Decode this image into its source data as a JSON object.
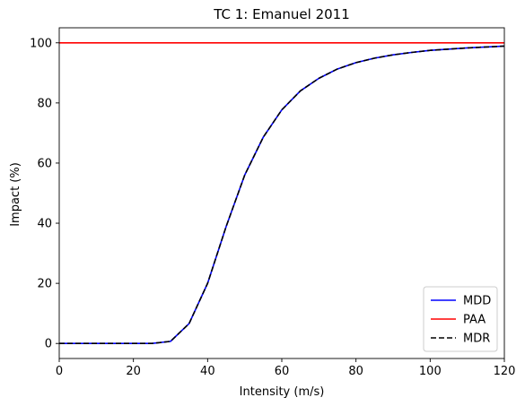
{
  "chart_data": {
    "type": "line",
    "title": "TC 1: Emanuel 2011",
    "xlabel": "Intensity (m/s)",
    "ylabel": "Impact (%)",
    "xlim": [
      0,
      120
    ],
    "ylim": [
      -5,
      105
    ],
    "xticks": [
      0,
      20,
      40,
      60,
      80,
      100,
      120
    ],
    "yticks": [
      0,
      20,
      40,
      60,
      80,
      100
    ],
    "grid": false,
    "legend_position": "bottom-right",
    "x": [
      0,
      5,
      10,
      15,
      20,
      25,
      30,
      35,
      40,
      45,
      50,
      55,
      60,
      65,
      70,
      75,
      80,
      85,
      90,
      95,
      100,
      105,
      110,
      115,
      120
    ],
    "series": [
      {
        "name": "MDD",
        "color": "#0000ff",
        "style": "solid",
        "values": [
          0,
          0,
          0,
          0,
          0,
          0,
          0.7,
          6.6,
          20.0,
          38.9,
          56.0,
          68.6,
          77.7,
          84.0,
          88.2,
          91.3,
          93.4,
          94.9,
          96.0,
          96.8,
          97.5,
          97.9,
          98.3,
          98.6,
          98.9
        ]
      },
      {
        "name": "PAA",
        "color": "#ff0000",
        "style": "solid",
        "values": [
          100,
          100,
          100,
          100,
          100,
          100,
          100,
          100,
          100,
          100,
          100,
          100,
          100,
          100,
          100,
          100,
          100,
          100,
          100,
          100,
          100,
          100,
          100,
          100,
          100
        ]
      },
      {
        "name": "MDR",
        "color": "#000000",
        "style": "dashed",
        "values": [
          0,
          0,
          0,
          0,
          0,
          0,
          0.7,
          6.6,
          20.0,
          38.9,
          56.0,
          68.6,
          77.7,
          84.0,
          88.2,
          91.3,
          93.4,
          94.9,
          96.0,
          96.8,
          97.5,
          97.9,
          98.3,
          98.6,
          98.9
        ]
      }
    ]
  }
}
